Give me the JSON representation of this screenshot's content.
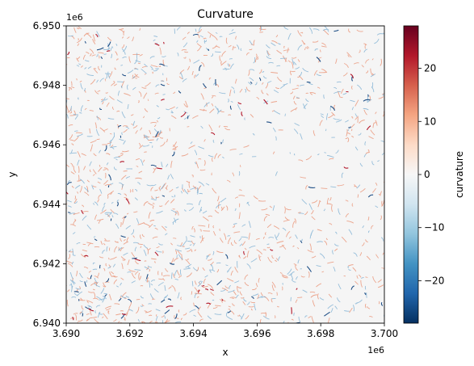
{
  "chart_data": {
    "type": "heatmap",
    "title": "Curvature",
    "xlabel": "x",
    "ylabel": "y",
    "x_offset_label": "1e6",
    "y_offset_label": "1e6",
    "xlim": [
      3.69,
      3.7
    ],
    "ylim": [
      6.94,
      6.95
    ],
    "x_ticks": [
      {
        "value": 3.69,
        "label": "3.690"
      },
      {
        "value": 3.692,
        "label": "3.692"
      },
      {
        "value": 3.694,
        "label": "3.694"
      },
      {
        "value": 3.696,
        "label": "3.696"
      },
      {
        "value": 3.698,
        "label": "3.698"
      },
      {
        "value": 3.7,
        "label": "3.700"
      }
    ],
    "y_ticks": [
      {
        "value": 6.94,
        "label": "6.940"
      },
      {
        "value": 6.942,
        "label": "6.942"
      },
      {
        "value": 6.944,
        "label": "6.944"
      },
      {
        "value": 6.946,
        "label": "6.946"
      },
      {
        "value": 6.948,
        "label": "6.948"
      },
      {
        "value": 6.95,
        "label": "6.950"
      }
    ],
    "colorbar": {
      "label": "curvature",
      "colormap": "RdBu_r",
      "range": [
        -28,
        28
      ],
      "ticks": [
        {
          "value": 20,
          "label": "20"
        },
        {
          "value": 10,
          "label": "10"
        },
        {
          "value": 0,
          "label": "0"
        },
        {
          "value": -10,
          "label": "−10"
        },
        {
          "value": -20,
          "label": "−20"
        }
      ],
      "stops": [
        "#053061",
        "#2166ac",
        "#4393c3",
        "#92c5de",
        "#d1e5f0",
        "#f7f7f7",
        "#fddbc7",
        "#f4a582",
        "#d6604d",
        "#b2182b",
        "#67001f"
      ]
    },
    "colors": {
      "background": "#f5f5f5",
      "positive": "#e8896a",
      "negative": "#6ea7cf",
      "strong_negative": "#1f4f86",
      "strong_positive": "#b2182b"
    }
  }
}
